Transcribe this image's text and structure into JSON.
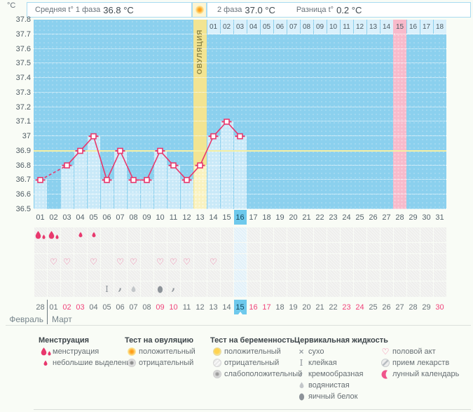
{
  "header": {
    "unit": "°C",
    "phase1_label": "Средняя t° 1 фаза",
    "phase1_value": "36.8 °C",
    "ovulation_icon": "ovulation-positive",
    "phase2_label": "2 фаза",
    "phase2_value": "37.0 °C",
    "diff_label": "Разница t°",
    "diff_value": "0.2 °C"
  },
  "chart_data": {
    "type": "line",
    "title": "Basal body temperature cycle chart",
    "ylabel": "°C",
    "ylim": [
      36.5,
      37.8
    ],
    "ytick_step": 0.1,
    "y_ticks": [
      "37.8",
      "37.7",
      "37.6",
      "37.5",
      "37.4",
      "37.3",
      "37.2",
      "37.1",
      "37",
      "36.9",
      "36.8",
      "36.7",
      "36.6",
      "36.5"
    ],
    "x_labels": [
      "01",
      "02",
      "03",
      "04",
      "05",
      "06",
      "07",
      "08",
      "09",
      "10",
      "11",
      "12",
      "13",
      "14",
      "15",
      "16",
      "17",
      "18",
      "19",
      "20",
      "21",
      "22",
      "23",
      "24",
      "25",
      "26",
      "27",
      "28",
      "29",
      "30",
      "31"
    ],
    "temperatures": [
      36.7,
      null,
      36.8,
      36.9,
      37.0,
      36.7,
      36.9,
      36.7,
      36.7,
      36.9,
      36.8,
      36.7,
      36.8,
      37.0,
      37.1,
      37.0,
      null,
      null,
      null,
      null,
      null,
      null,
      null,
      null,
      null,
      null,
      null,
      null,
      null,
      null,
      null
    ],
    "coverline": 36.9,
    "ovulation_day": 13,
    "ovulation_label": "ОВУЛЯЦИЯ",
    "expected_period_day": 28,
    "today_day": 16,
    "dpo_labels": [
      "01",
      "02",
      "03",
      "04",
      "05",
      "06",
      "07",
      "08",
      "09",
      "10",
      "11",
      "12",
      "13",
      "14",
      "15",
      "16",
      "17",
      "18"
    ],
    "dpo_highlight": "15",
    "grid": true,
    "colors": {
      "chart_bg": "#8bd0ee",
      "recorded_fill": "#c9e9f8",
      "line": "#e8386d",
      "coverline": "#f5efa3",
      "ovulation_column": "#f2e492",
      "expected_period_column": "#f8bacb",
      "today_highlight": "#6ec9ec",
      "weekend_text": "#f0437a"
    }
  },
  "symbol_rows": [
    {
      "name": "menstruation-row",
      "cells": {
        "1": "menstruation-heavy",
        "2": "menstruation-heavy",
        "4": "spotting",
        "5": "spotting"
      }
    },
    {
      "name": "ovulation-test-row",
      "cells": {}
    },
    {
      "name": "intercourse-row",
      "cells": {
        "2": "intercourse",
        "3": "intercourse",
        "5": "intercourse",
        "7": "intercourse",
        "8": "intercourse",
        "10": "intercourse",
        "11": "intercourse",
        "12": "intercourse",
        "14": "intercourse"
      }
    },
    {
      "name": "pregnancy-test-row",
      "cells": {}
    },
    {
      "name": "cervical-fluid-row",
      "cells": {
        "6": "sticky",
        "7": "creamy",
        "8": "watery",
        "10": "eggwhite",
        "11": "creamy"
      }
    }
  ],
  "dates": {
    "values": [
      "28",
      "01",
      "02",
      "03",
      "04",
      "05",
      "06",
      "07",
      "08",
      "09",
      "10",
      "11",
      "12",
      "13",
      "14",
      "15",
      "16",
      "17",
      "18",
      "19",
      "20",
      "21",
      "22",
      "23",
      "24",
      "25",
      "26",
      "27",
      "28",
      "29",
      "30"
    ],
    "weekend_indices": [
      2,
      3,
      9,
      10,
      16,
      17,
      23,
      24,
      30
    ],
    "today_index": 15
  },
  "months": {
    "first": "Февраль",
    "second": "Март"
  },
  "legend": {
    "columns": [
      {
        "header": "Менструация",
        "items": [
          {
            "icon": "menstruation-heavy",
            "label": "менструация"
          },
          {
            "icon": "spotting",
            "label": "небольшие выделения"
          }
        ]
      },
      {
        "header": "Тест на овуляцию",
        "items": [
          {
            "icon": "ovulation-positive",
            "label": "положительный"
          },
          {
            "icon": "ovulation-negative",
            "label": "отрицательный"
          }
        ]
      },
      {
        "header": "Тест на беременность",
        "items": [
          {
            "icon": "pregnancy-positive",
            "label": "положительный"
          },
          {
            "icon": "pregnancy-negative",
            "label": "отрицательный"
          },
          {
            "icon": "pregnancy-weak",
            "label": "слабоположительный"
          }
        ]
      },
      {
        "header": "Цервикальная жидкость",
        "items": [
          {
            "icon": "dry",
            "label": "сухо"
          },
          {
            "icon": "sticky",
            "label": "клейкая"
          },
          {
            "icon": "creamy",
            "label": "кремообразная"
          },
          {
            "icon": "watery",
            "label": "водянистая"
          },
          {
            "icon": "eggwhite",
            "label": "яичный белок"
          }
        ]
      },
      {
        "header": "",
        "items": [
          {
            "icon": "intercourse",
            "label": "половой акт"
          },
          {
            "icon": "medication",
            "label": "прием лекарств"
          },
          {
            "icon": "moon",
            "label": "лунный календарь"
          }
        ]
      }
    ]
  }
}
